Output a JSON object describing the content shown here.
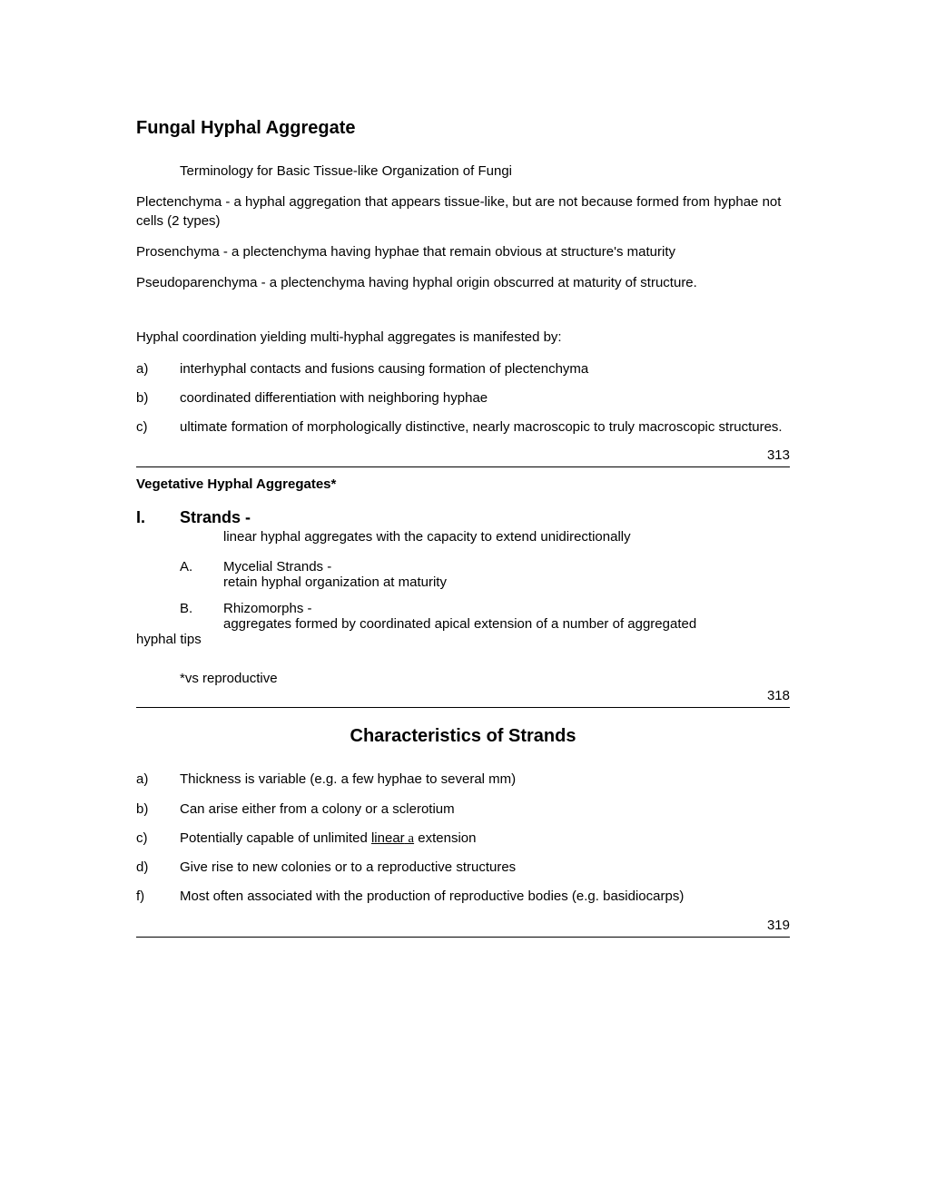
{
  "title": "Fungal Hyphal Aggregate",
  "subtitle": "Terminology for Basic Tissue-like Organization of Fungi",
  "defs": {
    "plectenchyma": "Plectenchyma -   a hyphal aggregation that appears tissue-like, but are not because formed from hyphae not cells (2 types)",
    "prosenchyma": "Prosenchyma -   a plectenchyma having hyphae that remain obvious at structure's maturity",
    "pseudoparenchyma": "Pseudoparenchyma -   a plectenchyma having hyphal origin obscurred at maturity of structure."
  },
  "coord_intro": "Hyphal coordination yielding multi-hyphal aggregates is manifested by:",
  "coord": {
    "a": {
      "label": "a)",
      "text": "interhyphal contacts and fusions causing formation of plectenchyma"
    },
    "b": {
      "label": "b)",
      "text": "coordinated differentiation with neighboring hyphae"
    },
    "c": {
      "label": "c)",
      "text": "ultimate formation of morphologically distinctive, nearly macroscopic to truly macroscopic structures."
    }
  },
  "page1": "313",
  "veg_head": "Vegetative Hyphal Aggregates*",
  "strands": {
    "num": "I.",
    "title": "Strands -",
    "desc": "linear hyphal aggregates with the capacity to extend unidirectionally",
    "A": {
      "label": "A.",
      "title": "Mycelial Strands -",
      "desc": "retain hyphal organization at maturity"
    },
    "B": {
      "label": "B.",
      "title": "Rhizomorphs -",
      "desc": "aggregates formed by coordinated apical extension of a number  of aggregated",
      "cont": "hyphal tips"
    }
  },
  "footnote": "*vs reproductive",
  "page2": "318",
  "char_head": "Characteristics of Strands",
  "char": {
    "a": {
      "label": "a)",
      "text": "Thickness is variable (e.g. a few hyphae to several mm)"
    },
    "b": {
      "label": "b)",
      "text": "Can arise either from a colony or a sclerotium"
    },
    "c": {
      "label": "c)",
      "pre": "Potentially capable of unlimited ",
      "u1": "linear",
      "u2": " a",
      "post": "  extension"
    },
    "d": {
      "label": "d)",
      "text": "Give rise to new colonies or to a reproductive structures"
    },
    "f": {
      "label": "f)",
      "text": "Most often associated with the production of reproductive bodies (e.g. basidiocarps)"
    }
  },
  "page3": "319"
}
